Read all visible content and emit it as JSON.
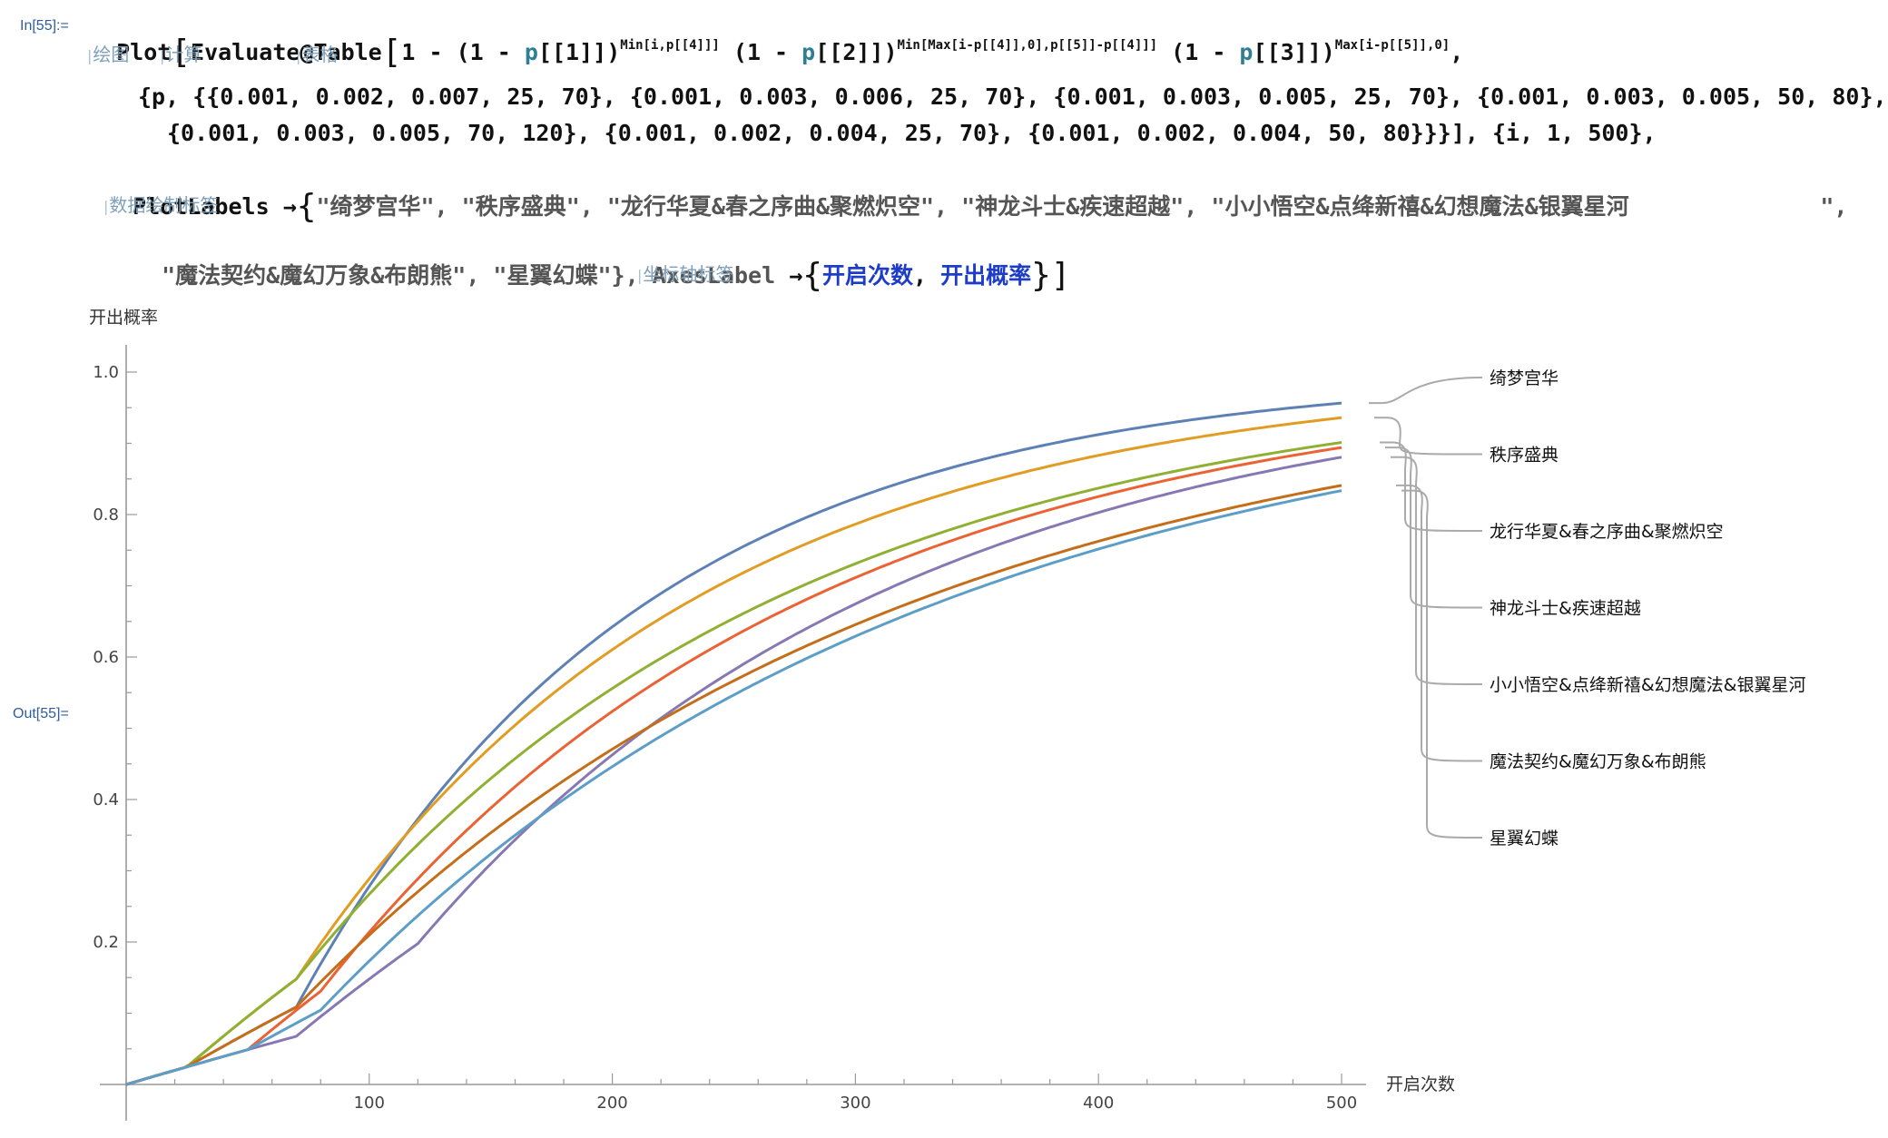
{
  "cells": {
    "in_label": "In[55]:=",
    "out_label": "Out[55]="
  },
  "code": {
    "l1_a": "Plot",
    "l1_b": "Evaluate@Table",
    "l1_c": "1 - (1 - ",
    "l1_p1": "p",
    "l1_d": "[[1]])",
    "l1_sup1": "Min[i,p[[4]]]",
    "l1_e": " (1 - ",
    "l1_p2": "p",
    "l1_f": "[[2]])",
    "l1_sup2": "Min[Max[i-p[[4]],0],p[[5]]-p[[4]]]",
    "l1_g": " (1 - ",
    "l1_p3": "p",
    "l1_h": "[[3]])",
    "l1_sup3": "Max[i-p[[5]],0]",
    "l1_end": ",",
    "l2": "{p, {{0.001, 0.002, 0.007, 25, 70}, {0.001, 0.003, 0.006, 25, 70}, {0.001, 0.003, 0.005, 25, 70}, {0.001, 0.003, 0.005, 50, 80},",
    "l3": "{0.001, 0.003, 0.005, 70, 120}, {0.001, 0.002, 0.004, 25, 70}, {0.001, 0.002, 0.004, 50, 80}}}], {i, 1, 500},",
    "l4_key": "PlotLabels",
    "l4_rest": "\"绮梦宫华\", \"秩序盛典\", \"龙行华夏&春之序曲&聚燃炽空\", \"神龙斗士&疾速超越\", \"小小悟空&点绛新禧&幻想魔法&银翼星河              \",",
    "l5_a": "\"魔法契约&魔幻万象&布朗熊\", \"星翼幻蝶\"}, AxesLabel",
    "l5_b": "开启次数",
    "l5_c": "开出概率",
    "arrow": "→"
  },
  "hints": {
    "plot": "绘图",
    "evaluate": "计算",
    "table": "表格",
    "plotlabels": "数据绘制标签",
    "axeslabel": "坐标轴标签"
  },
  "chart_data": {
    "type": "line",
    "x_axis_label": "开启次数",
    "y_axis_label": "开出概率",
    "xlim": [
      0,
      500
    ],
    "ylim": [
      0,
      1.0
    ],
    "x_ticks": [
      100,
      200,
      300,
      400,
      500
    ],
    "y_ticks": [
      0.2,
      0.4,
      0.6,
      0.8,
      1.0
    ],
    "grid": false,
    "legend_placement": "right, labels attached to line ends",
    "series": [
      {
        "name": "绮梦宫华",
        "color": "#5e81b5",
        "params": [
          0.001,
          0.002,
          0.007,
          25,
          70
        ],
        "end_value": 0.955
      },
      {
        "name": "秩序盛典",
        "color": "#e19c24",
        "params": [
          0.001,
          0.003,
          0.006,
          25,
          70
        ],
        "end_value": 0.935
      },
      {
        "name": "龙行华夏&春之序曲&聚燃炽空",
        "color": "#8fb032",
        "params": [
          0.001,
          0.003,
          0.005,
          25,
          70
        ],
        "end_value": 0.9
      },
      {
        "name": "神龙斗士&疾速超越",
        "color": "#eb6235",
        "params": [
          0.001,
          0.003,
          0.005,
          50,
          80
        ],
        "end_value": 0.89
      },
      {
        "name": "小小悟空&点绛新禧&幻想魔法&银翼星河",
        "color": "#8778b3",
        "params": [
          0.001,
          0.003,
          0.005,
          70,
          120
        ],
        "end_value": 0.88
      },
      {
        "name": "魔法契约&魔幻万象&布朗熊",
        "color": "#c56e1a",
        "params": [
          0.001,
          0.002,
          0.004,
          25,
          70
        ],
        "end_value": 0.84
      },
      {
        "name": "星翼幻蝶",
        "color": "#5d9ec7",
        "params": [
          0.001,
          0.002,
          0.004,
          50,
          80
        ],
        "end_value": 0.832
      }
    ]
  }
}
